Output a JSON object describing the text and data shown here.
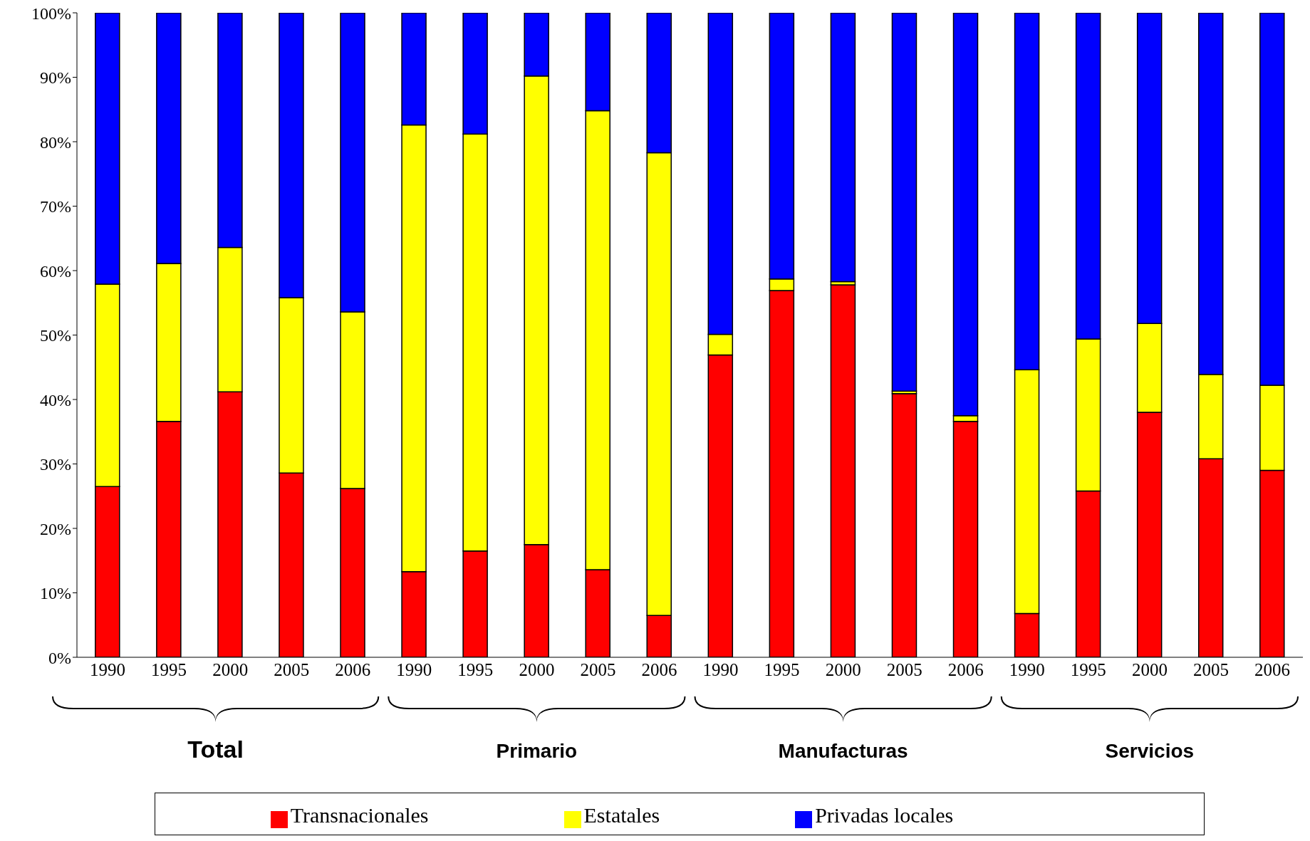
{
  "chart_data": {
    "type": "bar",
    "stacked": true,
    "categories": [
      "1990",
      "1995",
      "2000",
      "2005",
      "2006",
      "1990",
      "1995",
      "2000",
      "2005",
      "2006",
      "1990",
      "1995",
      "2000",
      "2005",
      "2006",
      "1990",
      "1995",
      "2000",
      "2005",
      "2006"
    ],
    "series": [
      {
        "name": "Transnacionales",
        "color": "#ff0000",
        "values": [
          26.5,
          36.6,
          41.2,
          28.6,
          26.2,
          13.3,
          16.5,
          17.5,
          13.6,
          6.5,
          46.9,
          56.9,
          57.8,
          40.9,
          36.6,
          6.8,
          25.8,
          38.0,
          30.8,
          29.0
        ]
      },
      {
        "name": "Estatales",
        "color": "#ffff00",
        "values": [
          31.4,
          24.5,
          22.4,
          27.2,
          27.4,
          69.3,
          64.7,
          72.7,
          71.2,
          71.8,
          3.2,
          1.8,
          0.5,
          0.4,
          0.9,
          37.8,
          23.6,
          13.8,
          13.1,
          13.2
        ]
      },
      {
        "name": "Privadas locales",
        "color": "#0000ff",
        "values": [
          42.1,
          38.9,
          36.4,
          44.2,
          46.4,
          17.4,
          18.8,
          9.8,
          15.2,
          21.7,
          49.9,
          41.3,
          41.7,
          58.7,
          62.5,
          55.4,
          50.6,
          48.2,
          56.1,
          57.8
        ]
      }
    ],
    "ylim": [
      0,
      100
    ],
    "yticks": [
      {
        "value": 0,
        "label": "0%"
      },
      {
        "value": 10,
        "label": "10%"
      },
      {
        "value": 20,
        "label": "20%"
      },
      {
        "value": 30,
        "label": "30%"
      },
      {
        "value": 40,
        "label": "40%"
      },
      {
        "value": 50,
        "label": "50%"
      },
      {
        "value": 60,
        "label": "60%"
      },
      {
        "value": 70,
        "label": "70%"
      },
      {
        "value": 80,
        "label": "80%"
      },
      {
        "value": 90,
        "label": "90%"
      },
      {
        "value": 100,
        "label": "100%"
      }
    ],
    "annotations": [
      "Total",
      "Primario",
      "Manufacturas",
      "Servicios"
    ],
    "legend": "bottom",
    "grid": false
  }
}
